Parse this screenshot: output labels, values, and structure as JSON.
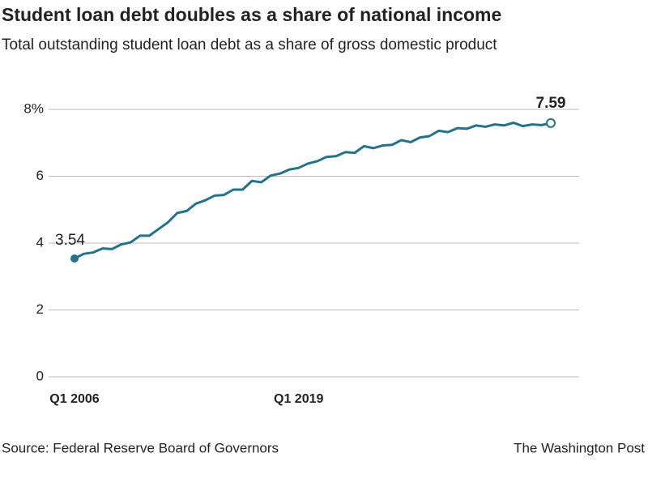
{
  "chart_data": {
    "type": "line",
    "title": "Student loan debt doubles as a share of national income",
    "subtitle": "Total outstanding student loan debt as a share of gross domestic product",
    "source": "Source: Federal Reserve Board of Governors",
    "credit": "The Washington Post",
    "categories": [
      "Q1 2006",
      null,
      null,
      null,
      null,
      null,
      null,
      null,
      null,
      null,
      null,
      null,
      null,
      null,
      null,
      null,
      null,
      null,
      null,
      null,
      null,
      null,
      null,
      null,
      "Q1 2019",
      null,
      null,
      null,
      null,
      null,
      null,
      null,
      null,
      null,
      null,
      null,
      null,
      null,
      null,
      null,
      null,
      null,
      null,
      null,
      null,
      null,
      null,
      null,
      null,
      null,
      null,
      null
    ],
    "values": [
      3.54,
      3.68,
      3.72,
      3.84,
      3.82,
      3.96,
      4.02,
      4.22,
      4.22,
      4.42,
      4.62,
      4.9,
      4.96,
      5.18,
      5.28,
      5.42,
      5.44,
      5.6,
      5.6,
      5.86,
      5.82,
      6.02,
      6.08,
      6.2,
      6.25,
      6.38,
      6.45,
      6.58,
      6.6,
      6.72,
      6.7,
      6.9,
      6.84,
      6.92,
      6.94,
      7.08,
      7.02,
      7.16,
      7.2,
      7.36,
      7.32,
      7.44,
      7.42,
      7.52,
      7.48,
      7.55,
      7.52,
      7.6,
      7.5,
      7.55,
      7.53,
      7.59
    ],
    "color": "#23728a",
    "ylim": [
      0,
      8
    ],
    "yticks": [
      0,
      2,
      4,
      6,
      {
        "value": 8,
        "label": "8%"
      }
    ],
    "grid": true
  }
}
